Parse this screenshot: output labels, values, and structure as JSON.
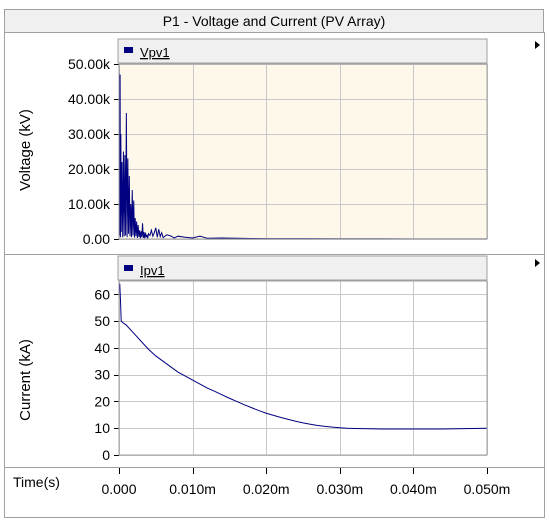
{
  "window": {
    "title": "P1 - Voltage and Current (PV Array)"
  },
  "colors": {
    "series": "#000080",
    "plot_bg_top": "#fdf8e9",
    "plot_bg_bottom": "#ffffff",
    "grid": "#c8c8c8",
    "frame_border": "#a0a0a0",
    "header_bg": "#f0f0f0"
  },
  "icons": {
    "expand_arrow": "triangle-right-icon",
    "legend_swatch": "series-swatch-icon"
  },
  "chart_data": [
    {
      "type": "line",
      "legend": [
        "Vpv1"
      ],
      "legend_placement": "top-left",
      "xlabel": "",
      "ylabel": "Voltage (kV)",
      "xlim": [
        0,
        0.05
      ],
      "ylim": [
        0,
        50000
      ],
      "yticks": [
        0,
        10000,
        20000,
        30000,
        40000,
        50000
      ],
      "yticklabels": [
        "0.00",
        "10.00k",
        "20.00k",
        "30.00k",
        "40.00k",
        "50.00k"
      ],
      "grid": true,
      "series": [
        {
          "name": "Vpv1",
          "x": [
            0,
            5e-05,
            0.0001,
            0.00015,
            0.0002,
            0.00025,
            0.0003,
            0.0004,
            0.0005,
            0.0006,
            0.0007,
            0.0008,
            0.0009,
            0.001,
            0.0011,
            0.0012,
            0.0013,
            0.0014,
            0.0015,
            0.0016,
            0.0017,
            0.0018,
            0.0019,
            0.002,
            0.0021,
            0.0022,
            0.0023,
            0.0024,
            0.0025,
            0.0026,
            0.0027,
            0.0028,
            0.0029,
            0.003,
            0.0031,
            0.0032,
            0.0033,
            0.0034,
            0.0035,
            0.0036,
            0.0037,
            0.0038,
            0.0039,
            0.004,
            0.0042,
            0.0044,
            0.0046,
            0.0048,
            0.005,
            0.0052,
            0.0054,
            0.0056,
            0.0058,
            0.006,
            0.0065,
            0.007,
            0.0075,
            0.008,
            0.009,
            0.01,
            0.011,
            0.012,
            0.014,
            0.016,
            0.018,
            0.02,
            0.025,
            0.03,
            0.035,
            0.04,
            0.045,
            0.05
          ],
          "y": [
            50000,
            42000,
            1000,
            47000,
            500,
            30000,
            2000,
            22000,
            500,
            25000,
            800,
            24000,
            1000,
            36000,
            500,
            23000,
            1500,
            18000,
            800,
            10000,
            500,
            14000,
            1000,
            11000,
            400,
            6000,
            800,
            5000,
            300,
            4000,
            600,
            2500,
            200,
            2200,
            500,
            4500,
            300,
            2000,
            200,
            1800,
            500,
            1200,
            200,
            1500,
            1000,
            2500,
            800,
            1800,
            3200,
            500,
            2800,
            700,
            1800,
            400,
            1200,
            900,
            300,
            800,
            500,
            300,
            800,
            200,
            300,
            200,
            150,
            120,
            100,
            80,
            60,
            50,
            40,
            30
          ]
        }
      ]
    },
    {
      "type": "line",
      "legend": [
        "Ipv1"
      ],
      "legend_placement": "top-left",
      "xlabel": "Time(s)",
      "ylabel": "Current (kA)",
      "xlim": [
        0,
        0.05
      ],
      "ylim": [
        0,
        65
      ],
      "yticks": [
        0,
        10,
        20,
        30,
        40,
        50,
        60
      ],
      "yticklabels": [
        "0",
        "10",
        "20",
        "30",
        "40",
        "50",
        "60"
      ],
      "xticks": [
        0,
        0.01,
        0.02,
        0.03,
        0.04,
        0.05
      ],
      "xticklabels": [
        "0.000",
        "0.010m",
        "0.020m",
        "0.030m",
        "0.040m",
        "0.050m"
      ],
      "grid": true,
      "series": [
        {
          "name": "Ipv1",
          "x": [
            0,
            0.0001,
            0.0002,
            0.0003,
            0.0005,
            0.001,
            0.002,
            0.003,
            0.004,
            0.005,
            0.006,
            0.007,
            0.008,
            0.009,
            0.01,
            0.011,
            0.012,
            0.013,
            0.014,
            0.015,
            0.016,
            0.017,
            0.018,
            0.019,
            0.02,
            0.021,
            0.022,
            0.023,
            0.024,
            0.025,
            0.026,
            0.027,
            0.028,
            0.029,
            0.03,
            0.031,
            0.032,
            0.034,
            0.036,
            0.038,
            0.04,
            0.042,
            0.044,
            0.046,
            0.048,
            0.05
          ],
          "y": [
            62,
            64,
            58,
            50,
            49.5,
            48.5,
            45.5,
            42.5,
            39.5,
            37,
            35,
            33,
            31,
            29.5,
            28,
            26.5,
            25,
            23.8,
            22.5,
            21.2,
            20,
            18.8,
            17.7,
            16.6,
            15.6,
            14.8,
            14,
            13.3,
            12.6,
            12,
            11.5,
            11,
            10.7,
            10.4,
            10.2,
            10,
            9.9,
            9.8,
            9.7,
            9.7,
            9.7,
            9.7,
            9.7,
            9.8,
            9.9,
            10
          ]
        }
      ]
    }
  ]
}
